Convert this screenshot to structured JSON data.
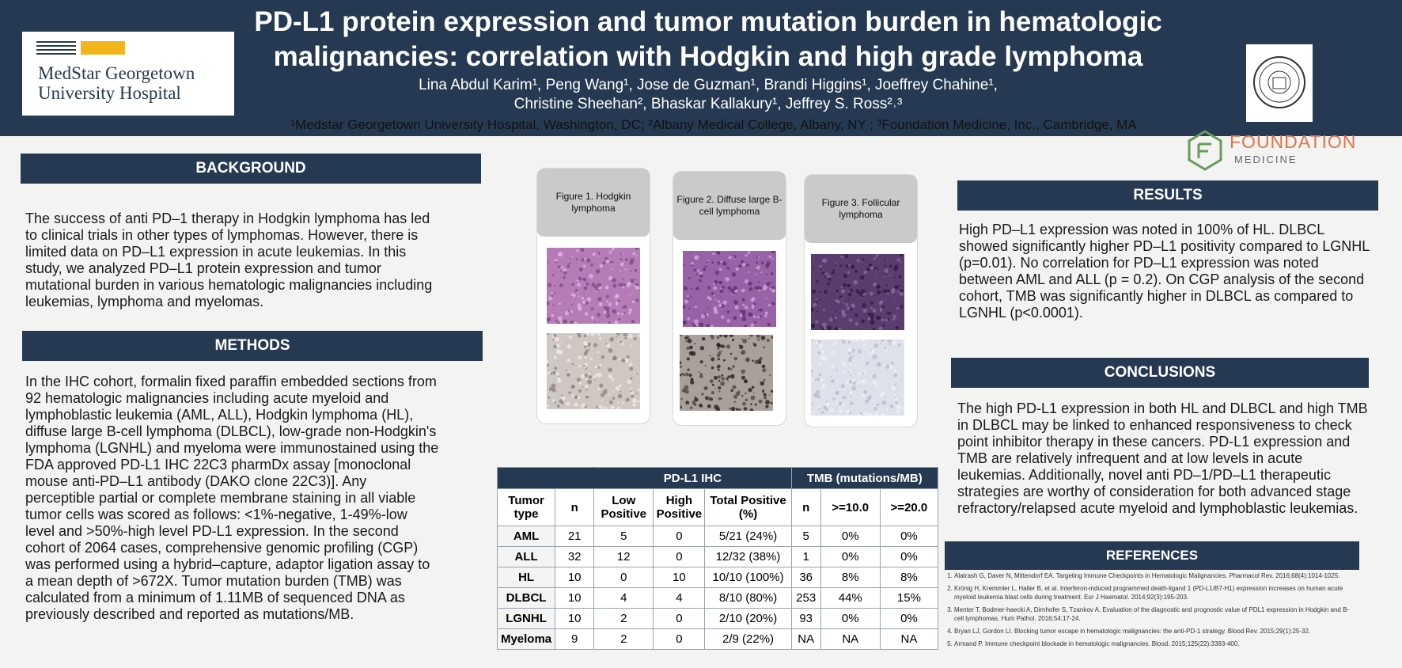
{
  "header": {
    "title_line1": "PD-L1 protein expression and tumor mutation burden in hematologic",
    "title_line2": "malignancies: correlation with Hodgkin and high grade lymphoma",
    "authors_line1": "Lina Abdul Karim¹, Peng Wang¹, Jose de Guzman¹, Brandi Higgins¹, Joeffrey Chahine¹,",
    "authors_line2": "Christine Sheehan², Bhaskar Kallakury¹, Jeffrey S. Ross²˒³",
    "affiliations": "¹Medstar Georgetown University Hospital, Washington, DC; ²Albany Medical College, Albany, NY ; ³Foundation Medicine, Inc., Cambridge, MA",
    "logo_line1": "MedStar Georgetown",
    "logo_line2": "University Hospital",
    "sponsor_name": "FOUNDATION",
    "sponsor_sub": "MEDICINE"
  },
  "colors": {
    "navy": "#253a52",
    "foundation_orange": "#e0734a",
    "logo_gold": "#f2b51c"
  },
  "background": {
    "heading": "BACKGROUND",
    "lines": [
      "The success of anti PD–1 therapy in Hodgkin lymphoma has led",
      "to clinical trials in other types of lymphomas. However, there is",
      "limited data on PD–L1 expression in acute leukemias. In this",
      "study, we analyzed PD–L1 protein expression and tumor",
      "mutational burden in various hematologic malignancies including",
      "leukemias, lymphoma and myelomas."
    ]
  },
  "methods": {
    "heading": "METHODS",
    "lines": [
      "In the IHC cohort, formalin fixed paraffin embedded sections from",
      "92 hematologic malignancies including acute myeloid and",
      "lymphoblastic leukemia (AML, ALL), Hodgkin lymphoma (HL),",
      "diffuse large B-cell lymphoma (DLBCL), low-grade non-Hodgkin's",
      "lymphoma (LGNHL) and myeloma were immunostained using the",
      "FDA approved PD-L1 IHC 22C3 pharmDx assay [monoclonal",
      "mouse anti-PD–L1 antibody (DAKO clone 22C3)]. Any",
      "perceptible partial or complete membrane staining in all viable",
      "tumor cells was scored as follows: <1%-negative, 1-49%-low",
      "level and >50%-high level PD-L1 expression. In the second",
      "cohort of 2064 cases, comprehensive genomic profiling (CGP)",
      "was performed using a hybrid–capture, adaptor ligation assay to",
      "a mean depth of >672X. Tumor mutation burden (TMB) was",
      "calculated from a minimum of 1.11MB of sequenced DNA as",
      "previously described and reported as mutations/MB."
    ]
  },
  "figures": [
    {
      "label": "Figure 1. Hodgkin lymphoma",
      "he": "#b57cb8",
      "ihc": "#8b807c",
      "ihc_light": "#cfc7c2"
    },
    {
      "label": "Figure 2. Diffuse large B-cell lymphoma",
      "he": "#9a62a6",
      "ihc": "#4a4440",
      "ihc_light": "#a8a09a"
    },
    {
      "label": "Figure 3. Follicular lymphoma",
      "he": "#5a3c6e",
      "ihc": "#b8bccc",
      "ihc_light": "#dfe1ea"
    }
  ],
  "table": {
    "group_ihc": "PD-L1 IHC",
    "group_tmb": "TMB (mutations/MB)",
    "headers": [
      "Tumor type",
      "n",
      "Low Positive",
      "High Positive",
      "Total Positive (%)",
      "n",
      ">=10.0",
      ">=20.0"
    ],
    "rows": [
      [
        "AML",
        "21",
        "5",
        "0",
        "5/21 (24%)",
        "5",
        "0%",
        "0%"
      ],
      [
        "ALL",
        "32",
        "12",
        "0",
        "12/32 (38%)",
        "1",
        "0%",
        "0%"
      ],
      [
        "HL",
        "10",
        "0",
        "10",
        "10/10 (100%)",
        "36",
        "8%",
        "8%"
      ],
      [
        "DLBCL",
        "10",
        "4",
        "4",
        "8/10 (80%)",
        "253",
        "44%",
        "15%"
      ],
      [
        "LGNHL",
        "10",
        "2",
        "0",
        "2/10 (20%)",
        "93",
        "0%",
        "0%"
      ],
      [
        "Myeloma",
        "9",
        "2",
        "0",
        "2/9 (22%)",
        "NA",
        "NA",
        "NA"
      ]
    ]
  },
  "results": {
    "heading": "RESULTS",
    "lines": [
      "High PD–L1 expression was noted in 100% of HL. DLBCL",
      "showed significantly higher PD–L1 positivity compared to LGNHL",
      "(p=0.01). No correlation for PD–L1 expression was noted",
      "between AML and ALL (p = 0.2). On CGP analysis of the second",
      "cohort, TMB was significantly higher in DLBCL as compared to",
      "LGNHL (p<0.0001)."
    ]
  },
  "conclusions": {
    "heading": "CONCLUSIONS",
    "lines": [
      "The high PD-L1 expression in both HL and DLBCL and high TMB",
      "in DLBCL may be linked to enhanced responsiveness to check",
      "point inhibitor therapy in these cancers. PD-L1 expression and",
      "TMB are relatively infrequent and at low levels in acute",
      "leukemias. Additionally, novel anti PD–1/PD–L1 therapeutic",
      "strategies are worthy of consideration for both advanced stage",
      "refractory/relapsed acute myeloid and lymphoblastic leukemias."
    ]
  },
  "references": {
    "heading": "REFERENCES",
    "items": [
      "Alatrash G, Daver N, Mittendorf EA. Targeting Immune Checkpoints in Hematologic Malignancies. Pharmacol Rev. 2016;68(4):1014-1025.",
      "Krönig H, Kremmler L, Haller B, et al. Interferon-induced programmed death-ligand 1 (PD-L1/B7-H1) expression increases on human acute myeloid leukemia blast cells during treatment. Eur J Haematol. 2014;92(3):195-203.",
      "Menter T, Bodmer-haecki A, Dirnhofer S, Tzankov A. Evaluation of the diagnostic and prognostic value of PDL1 expression in Hodgkin and B-cell lymphomas. Hum Pathol. 2016;54:17-24.",
      "Bryan LJ, Gordon LI. Blocking tumor escape in hematologic malignancies: the anti-PD-1 strategy. Blood Rev. 2015;29(1):25-32.",
      "Armand P. Immune checkpoint blockade in hematologic malignancies. Blood. 2015;125(22):3393-400."
    ]
  }
}
